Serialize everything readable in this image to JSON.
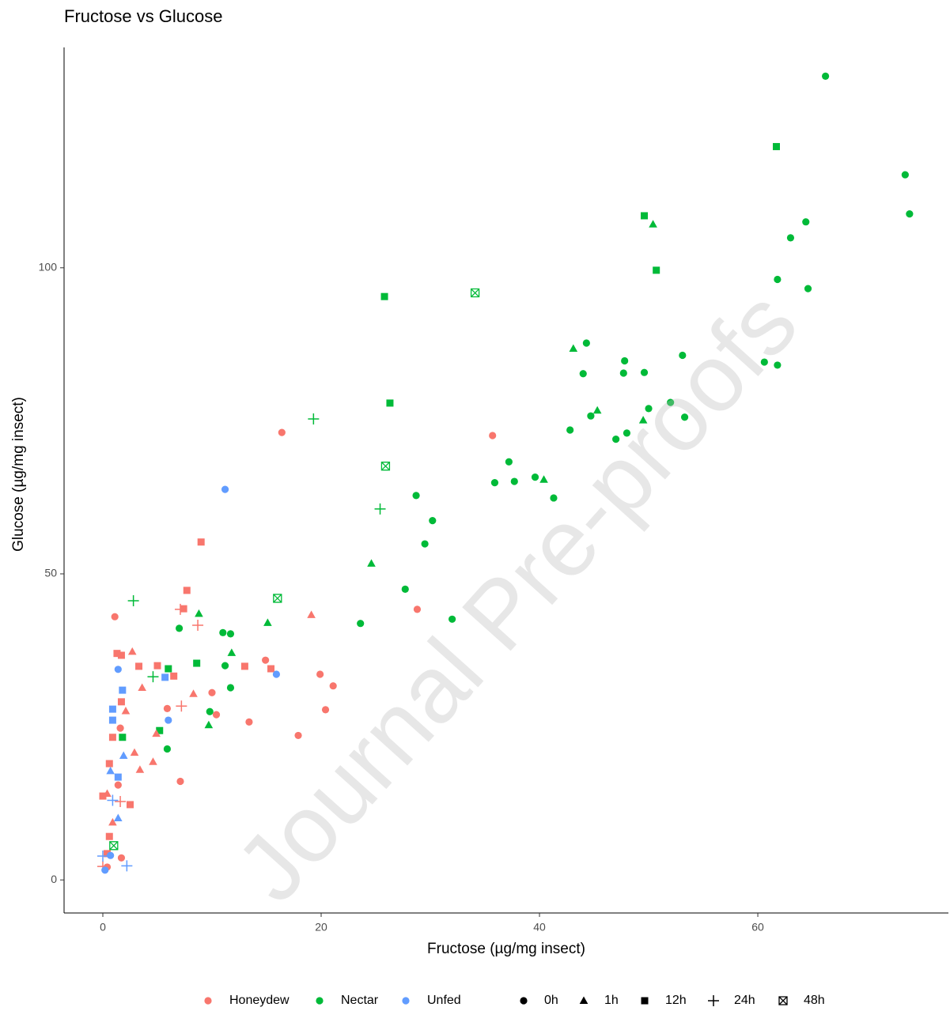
{
  "chart_data": {
    "type": "scatter",
    "title": "Fructose vs Glucose",
    "x_label": "Fructose (µg/mg insect)",
    "y_label": "Glucose (µg/mg insect)",
    "watermark": "Journal Pre-proofs",
    "xlim": [
      -3.55,
      77.46
    ],
    "ylim": [
      -5.4,
      136.0
    ],
    "xticks": [
      0,
      20,
      40,
      60
    ],
    "yticks": [
      0,
      50,
      100
    ],
    "grid": false,
    "legend_position": "bottom",
    "color_legend": [
      {
        "name": "Honeydew",
        "color": "#F8766D"
      },
      {
        "name": "Nectar",
        "color": "#00BA38"
      },
      {
        "name": "Unfed",
        "color": "#619CFF"
      }
    ],
    "shape_legend": [
      {
        "name": "0h",
        "shape": "circle"
      },
      {
        "name": "1h",
        "shape": "triangle"
      },
      {
        "name": "12h",
        "shape": "square"
      },
      {
        "name": "24h",
        "shape": "plus"
      },
      {
        "name": "48h",
        "shape": "boxx"
      }
    ],
    "series": [
      {
        "color": "#00BA38",
        "shape": "circle",
        "x": [
          66.2,
          73.5,
          73.9,
          64.4,
          63.0,
          61.8,
          64.6,
          44.3,
          53.1,
          47.8,
          60.6,
          61.8,
          44.0,
          47.7,
          49.6,
          52.0,
          50.0,
          44.7,
          53.3,
          42.8,
          48.0,
          47.0,
          37.2,
          35.9,
          37.7,
          39.6,
          41.3,
          28.7,
          30.2,
          29.5,
          27.7,
          32.0,
          23.6,
          7.0,
          11.0,
          11.7,
          11.2,
          11.7,
          9.8,
          5.9
        ],
        "values": [
          131.3,
          115.2,
          108.8,
          107.5,
          104.9,
          98.1,
          96.6,
          87.7,
          85.7,
          84.8,
          84.6,
          84.1,
          82.7,
          82.8,
          82.9,
          78.0,
          77.0,
          75.8,
          75.6,
          73.5,
          73.0,
          72.0,
          68.3,
          64.9,
          65.1,
          65.8,
          62.4,
          62.8,
          58.7,
          54.9,
          47.5,
          42.6,
          41.9,
          41.1,
          40.4,
          40.2,
          35.0,
          31.4,
          27.5,
          21.4
        ]
      },
      {
        "color": "#00BA38",
        "shape": "triangle",
        "x": [
          43.1,
          50.4,
          45.3,
          49.5,
          40.4,
          24.6,
          8.8,
          15.1,
          11.8,
          9.7
        ],
        "values": [
          86.8,
          107.1,
          76.7,
          75.1,
          65.4,
          51.7,
          43.5,
          42.0,
          37.1,
          25.3
        ]
      },
      {
        "color": "#00BA38",
        "shape": "square",
        "x": [
          61.7,
          49.6,
          50.7,
          25.8,
          26.3,
          8.6,
          6.0,
          5.2,
          1.8
        ],
        "values": [
          119.8,
          108.5,
          99.6,
          95.3,
          77.9,
          35.4,
          34.5,
          24.4,
          23.3
        ]
      },
      {
        "color": "#00BA38",
        "shape": "plus",
        "x": [
          19.3,
          25.4,
          2.8,
          4.6
        ],
        "values": [
          75.3,
          60.6,
          45.6,
          33.2
        ]
      },
      {
        "color": "#00BA38",
        "shape": "boxx",
        "x": [
          34.1,
          25.9,
          16.0,
          1.0
        ],
        "values": [
          95.9,
          67.6,
          46.0,
          5.6
        ]
      },
      {
        "color": "#F8766D",
        "shape": "circle",
        "x": [
          16.4,
          35.7,
          28.8,
          1.1,
          14.9,
          19.9,
          21.1,
          10.0,
          5.9,
          10.4,
          20.4,
          13.4,
          17.9,
          7.1,
          1.4,
          1.6,
          1.7,
          0.4
        ],
        "values": [
          73.1,
          72.6,
          44.2,
          43.0,
          35.9,
          33.6,
          31.7,
          30.6,
          28.0,
          27.0,
          27.8,
          25.8,
          23.6,
          16.1,
          15.5,
          24.8,
          3.6,
          2.1
        ]
      },
      {
        "color": "#F8766D",
        "shape": "triangle",
        "x": [
          2.7,
          3.6,
          2.1,
          8.3,
          4.9,
          2.9,
          3.4,
          4.6,
          19.1,
          0.4,
          0.9
        ],
        "values": [
          37.3,
          31.4,
          27.6,
          30.4,
          23.9,
          20.8,
          18.0,
          19.3,
          43.3,
          14.1,
          9.4
        ]
      },
      {
        "color": "#F8766D",
        "shape": "square",
        "x": [
          9.0,
          7.7,
          7.4,
          1.3,
          1.7,
          3.3,
          5.0,
          13.0,
          15.4,
          6.5,
          1.7,
          0.9,
          0.6,
          0.0,
          2.5,
          0.6,
          0.4
        ],
        "values": [
          55.2,
          47.3,
          44.3,
          37.0,
          36.7,
          34.9,
          35.0,
          34.9,
          34.5,
          33.3,
          29.1,
          23.3,
          19.0,
          13.7,
          12.3,
          7.1,
          4.3
        ]
      },
      {
        "color": "#F8766D",
        "shape": "plus",
        "x": [
          8.7,
          7.1,
          7.2,
          0.0,
          1.6
        ],
        "values": [
          41.6,
          44.2,
          28.4,
          2.2,
          12.8
        ]
      },
      {
        "color": "#619CFF",
        "shape": "circle",
        "x": [
          11.2,
          15.9,
          1.4,
          6.0,
          0.2,
          0.7
        ],
        "values": [
          63.8,
          33.6,
          34.4,
          26.1,
          1.6,
          4.0
        ]
      },
      {
        "color": "#619CFF",
        "shape": "triangle",
        "x": [
          1.9,
          1.4,
          0.7
        ],
        "values": [
          20.3,
          10.1,
          17.8
        ]
      },
      {
        "color": "#619CFF",
        "shape": "square",
        "x": [
          1.8,
          0.9,
          0.9,
          5.7,
          1.4
        ],
        "values": [
          31.0,
          27.9,
          26.1,
          33.1,
          16.8
        ]
      },
      {
        "color": "#619CFF",
        "shape": "plus",
        "x": [
          2.2,
          0.0,
          0.9
        ],
        "values": [
          2.3,
          3.9,
          13.0
        ]
      }
    ]
  }
}
